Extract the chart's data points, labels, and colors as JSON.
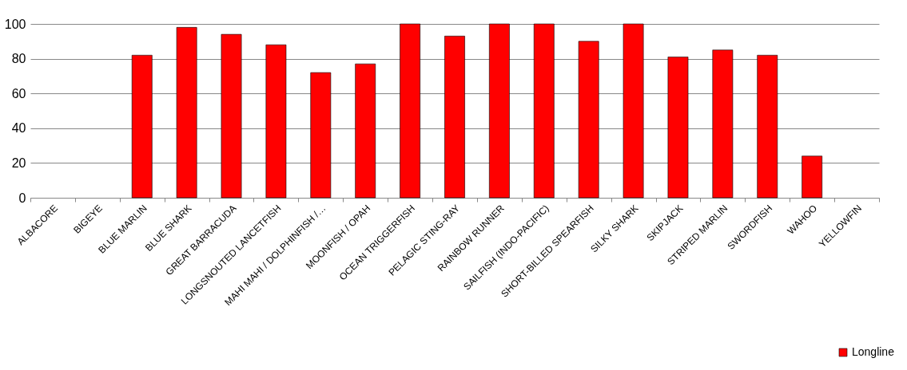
{
  "chart_data": {
    "type": "bar",
    "categories": [
      "ALBACORE",
      "BIGEYE",
      "BLUE MARLIN",
      "BLUE SHARK",
      "GREAT BARRACUDA",
      "LONGSNOUTED LANCETFISH",
      "MAHI MAHI / DOLPHINFISH /…",
      "MOONFISH / OPAH",
      "OCEAN TRIGGERFISH",
      "PELAGIC STING-RAY",
      "RAINBOW RUNNER",
      "SAILFISH (INDO-PACIFIC)",
      "SHORT-BILLED SPEARFISH",
      "SILKY SHARK",
      "SKIPJACK",
      "STRIPED MARLIN",
      "SWORDFISH",
      "WAHOO",
      "YELLOWFIN"
    ],
    "series": [
      {
        "name": "Longline",
        "color": "#ff0000",
        "values": [
          null,
          null,
          82,
          98,
          94,
          88,
          72,
          77,
          100,
          93,
          100,
          100,
          90,
          100,
          81,
          85,
          82,
          24,
          null
        ]
      }
    ],
    "ylim": [
      0,
      100
    ],
    "yticks": [
      0,
      20,
      40,
      60,
      80,
      100
    ],
    "grid": "y",
    "legend": "bottom right"
  }
}
